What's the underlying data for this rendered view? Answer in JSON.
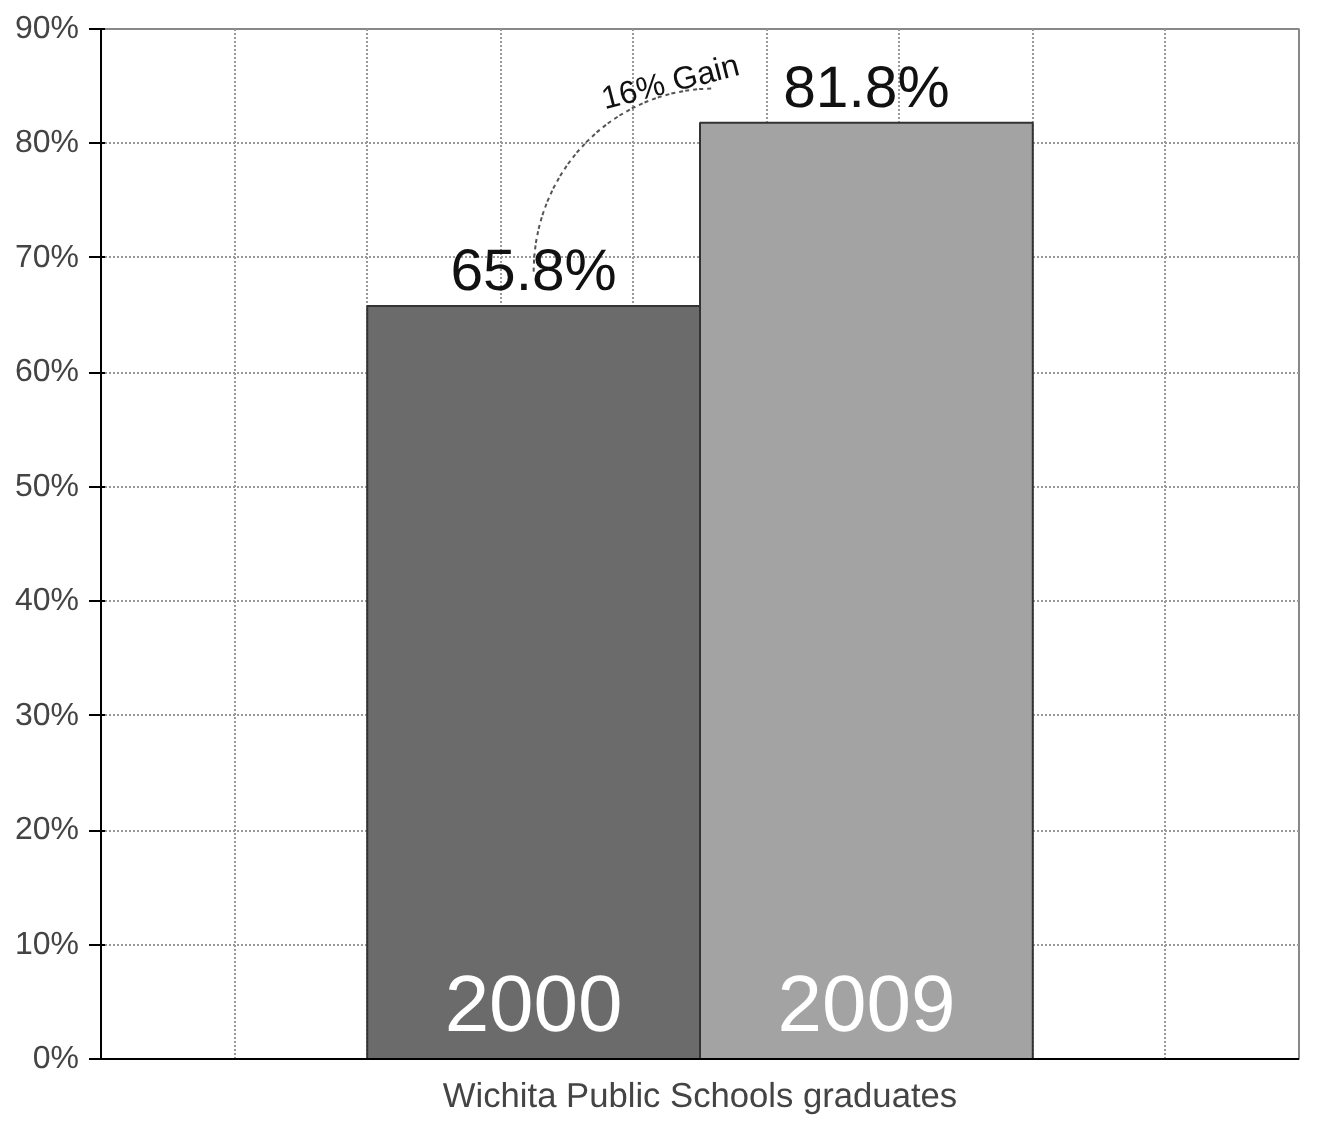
{
  "chart_data": {
    "type": "bar",
    "xlabel": "Wichita Public Schools graduates",
    "categories": [
      "2000",
      "2009"
    ],
    "values": [
      65.8,
      81.8
    ],
    "colors": [
      "#6b6b6b",
      "#a3a3a3"
    ],
    "value_labels": [
      "65.8%",
      "81.8%"
    ],
    "ylim": [
      0,
      90
    ],
    "yticks": [
      {
        "value": 0,
        "label": "0%"
      },
      {
        "value": 10,
        "label": "10%"
      },
      {
        "value": 20,
        "label": "20%"
      },
      {
        "value": 30,
        "label": "30%"
      },
      {
        "value": 40,
        "label": "40%"
      },
      {
        "value": 50,
        "label": "50%"
      },
      {
        "value": 60,
        "label": "60%"
      },
      {
        "value": 70,
        "label": "70%"
      },
      {
        "value": 80,
        "label": "80%"
      },
      {
        "value": 90,
        "label": "90%"
      }
    ],
    "annotations": [
      "16% Gain"
    ],
    "grid": true,
    "tick_labels": "y"
  }
}
